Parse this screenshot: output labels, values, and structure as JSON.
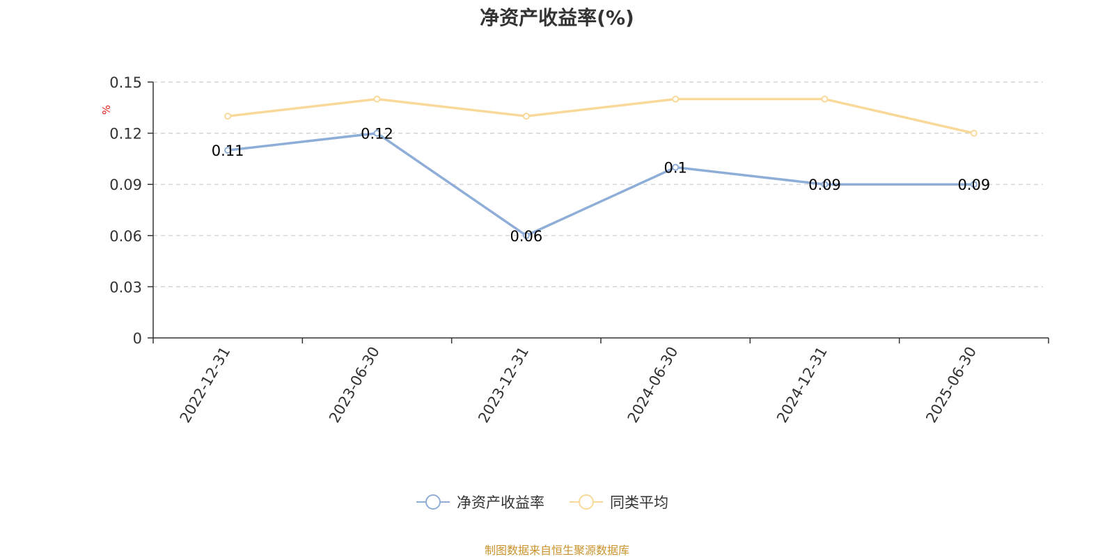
{
  "chart_data": {
    "type": "line",
    "title": "净资产收益率(%)",
    "ylabel": "%",
    "xlabel": "",
    "categories": [
      "2022-12-31",
      "2023-06-30",
      "2023-12-31",
      "2024-06-30",
      "2024-12-31",
      "2025-06-30"
    ],
    "ylim": [
      0,
      0.15
    ],
    "yticks": [
      "0",
      "0.03",
      "0.06",
      "0.09",
      "0.12",
      "0.15"
    ],
    "grid": true,
    "legend_position": "bottom-center",
    "series": [
      {
        "name": "净资产收益率",
        "values": [
          0.11,
          0.12,
          0.06,
          0.1,
          0.09,
          0.09
        ],
        "data_labels": [
          "0.11",
          "0.12",
          "0.06",
          "0.1",
          "0.09",
          "0.09"
        ],
        "color": "#8eaed8"
      },
      {
        "name": "同类平均",
        "values": [
          0.13,
          0.14,
          0.13,
          0.14,
          0.14,
          0.12
        ],
        "color": "#f9d99a"
      }
    ]
  },
  "footer": {
    "source": "制图数据来自恒生聚源数据库"
  },
  "colors": {
    "axis": "#333333",
    "grid": "#cccccc",
    "ylabel": "#e0201b",
    "footer": "#c9932c"
  }
}
